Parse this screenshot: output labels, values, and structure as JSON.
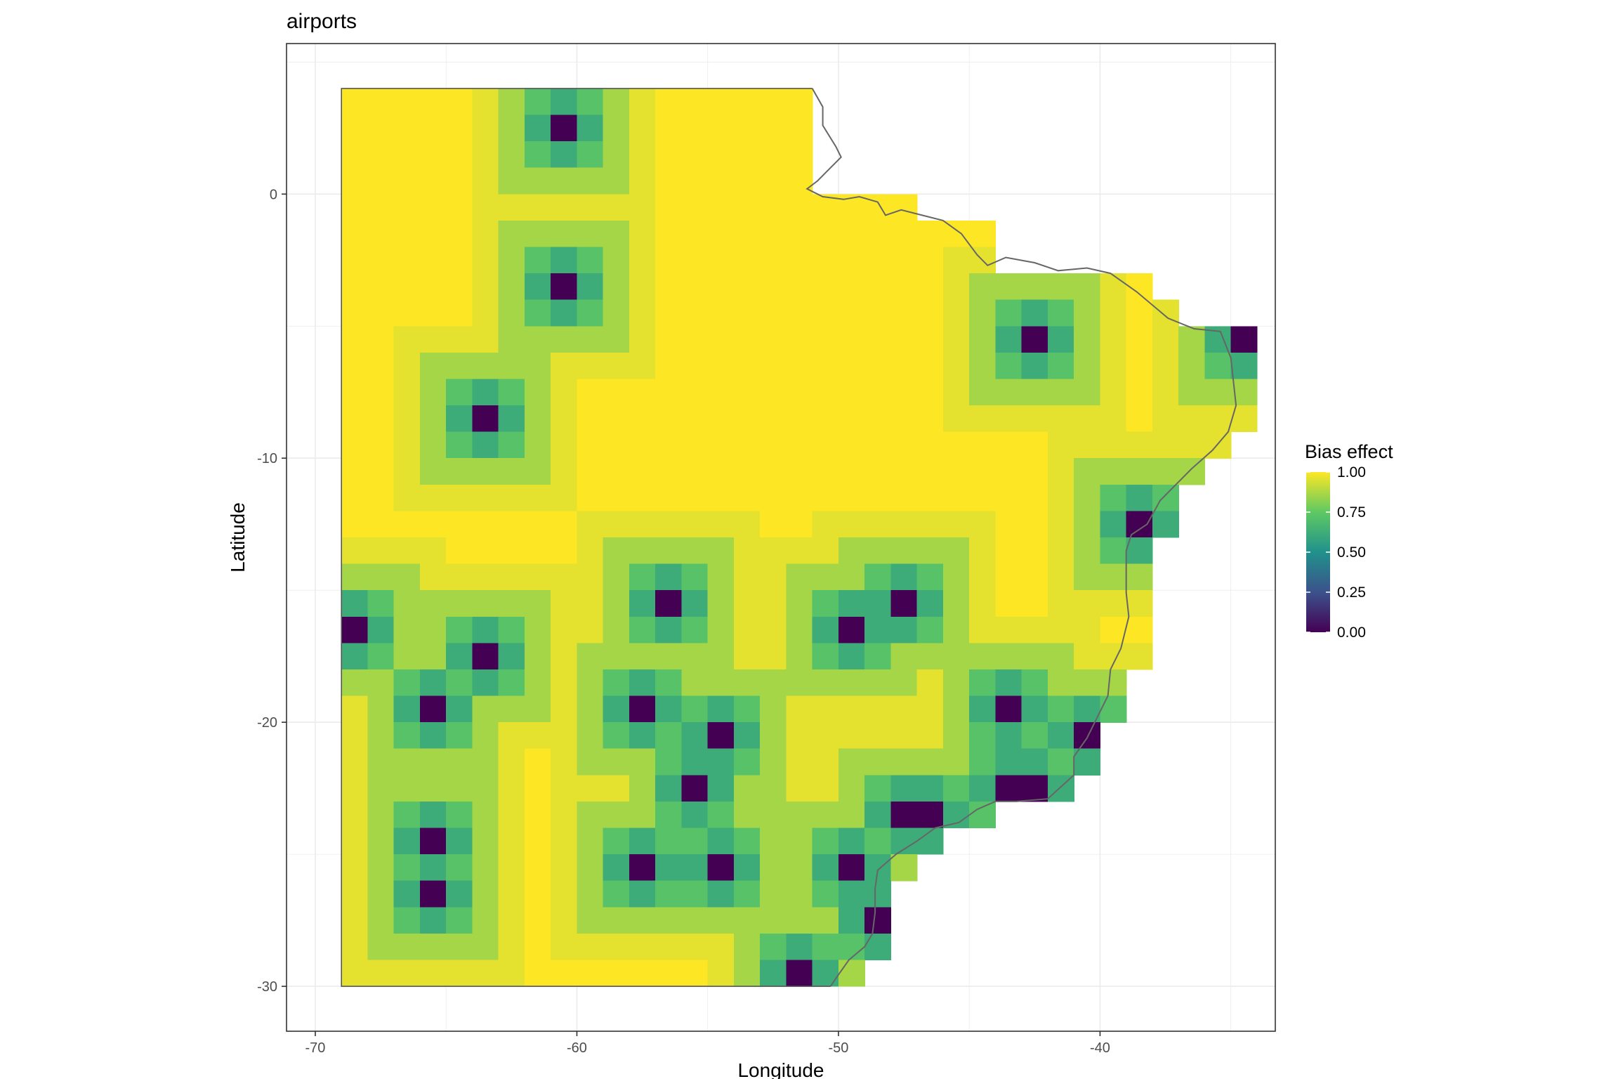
{
  "chart_data": {
    "type": "heatmap",
    "title": "airports",
    "xlabel": "Longitude",
    "ylabel": "Latitude",
    "xlim": [
      -71.1,
      -33.3
    ],
    "ylim": [
      -31.7,
      5.7
    ],
    "x_ticks": [
      -70,
      -60,
      -50,
      -40
    ],
    "y_ticks": [
      0,
      -10,
      -20,
      -30
    ],
    "x_tick_labels": [
      "-70",
      "-60",
      "-50",
      "-40"
    ],
    "y_tick_labels": [
      "0",
      "-10",
      "-20",
      "-30"
    ],
    "grid": true,
    "cell_size_degrees": 1,
    "grid_columns_lon_left_edge": -69,
    "grid_rows_lat_top_edge": 4,
    "colorscale": "viridis",
    "colorscale_stops": [
      "#440154",
      "#3b528b",
      "#21918c",
      "#5ec962",
      "#fde725"
    ],
    "legend": {
      "title": "Bias effect",
      "position": "right",
      "ticks": [
        1.0,
        0.75,
        0.5,
        0.25,
        0.0
      ],
      "tick_labels": [
        "1.00",
        "0.75",
        "0.50",
        "0.25",
        "0.00"
      ]
    },
    "airports": [
      {
        "lon": -60.5,
        "lat": 2.5
      },
      {
        "lon": -60.5,
        "lat": -3.5
      },
      {
        "lon": -63.5,
        "lat": -8.5
      },
      {
        "lon": -42.5,
        "lat": -5.5
      },
      {
        "lon": -34.5,
        "lat": -5.5
      },
      {
        "lon": -38.5,
        "lat": -12.5
      },
      {
        "lon": -56.5,
        "lat": -15.5
      },
      {
        "lon": -47.5,
        "lat": -15.5
      },
      {
        "lon": -49.5,
        "lat": -16.5
      },
      {
        "lon": -68.5,
        "lat": -16.5
      },
      {
        "lon": -63.5,
        "lat": -17.5
      },
      {
        "lon": -65.5,
        "lat": -19.5
      },
      {
        "lon": -57.5,
        "lat": -19.5
      },
      {
        "lon": -43.5,
        "lat": -19.5
      },
      {
        "lon": -54.5,
        "lat": -20.5
      },
      {
        "lon": -40.5,
        "lat": -20.5
      },
      {
        "lon": -55.5,
        "lat": -22.5
      },
      {
        "lon": -43.5,
        "lat": -22.5
      },
      {
        "lon": -42.5,
        "lat": -22.5
      },
      {
        "lon": -47.5,
        "lat": -23.5
      },
      {
        "lon": -46.5,
        "lat": -23.5
      },
      {
        "lon": -65.5,
        "lat": -24.5
      },
      {
        "lon": -57.5,
        "lat": -25.5
      },
      {
        "lon": -54.5,
        "lat": -25.5
      },
      {
        "lon": -49.5,
        "lat": -25.5
      },
      {
        "lon": -65.5,
        "lat": -26.5
      },
      {
        "lon": -48.5,
        "lat": -27.5
      },
      {
        "lon": -51.5,
        "lat": -29.5
      }
    ],
    "masked_cells": [
      {
        "lon": -52.5,
        "lat": 3.5
      },
      {
        "lon": -51.5,
        "lat": 3.5
      },
      {
        "lon": -50.5,
        "lat": 3.5
      },
      {
        "lon": -49.5,
        "lat": 3.5
      },
      {
        "lon": -48.5,
        "lat": 3.5
      },
      {
        "lon": -47.5,
        "lat": 3.5
      },
      {
        "lon": -46.5,
        "lat": 3.5
      },
      {
        "lon": -45.5,
        "lat": 3.5
      },
      {
        "lon": -44.5,
        "lat": 3.5
      },
      {
        "lon": -43.5,
        "lat": 3.5
      },
      {
        "lon": -42.5,
        "lat": 3.5
      },
      {
        "lon": -41.5,
        "lat": 3.5
      },
      {
        "lon": -40.5,
        "lat": 3.5
      },
      {
        "lon": -39.5,
        "lat": 3.5
      },
      {
        "lon": -38.5,
        "lat": 3.5
      },
      {
        "lon": -37.5,
        "lat": 3.5
      },
      {
        "lon": -36.5,
        "lat": 3.5
      },
      {
        "lon": -35.5,
        "lat": 3.5
      },
      {
        "lon": -34.5,
        "lat": 3.5
      }
    ]
  }
}
